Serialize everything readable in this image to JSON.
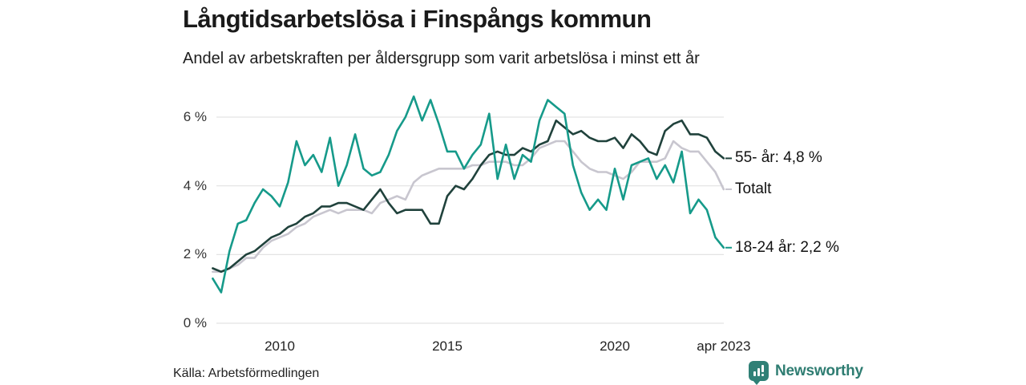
{
  "header": {
    "title": "Långtidsarbetslösa i Finspångs kommun",
    "subtitle": "Andel av arbetskraften per åldersgrupp som varit arbetslösa i minst ett år"
  },
  "footer": {
    "source": "Källa: Arbetsförmedlingen",
    "brand": "Newsworthy",
    "brand_icon": "bar-chart-badge-icon"
  },
  "colors": {
    "teal": "#169a8a",
    "dark_green": "#20423c",
    "light_gray": "#c8c6cf",
    "grid": "#e3e3e3",
    "brand": "#2f7d72",
    "text": "#1a1a1a"
  },
  "chart_data": {
    "type": "line",
    "title": "Långtidsarbetslösa i Finspångs kommun",
    "subtitle": "Andel av arbetskraften per åldersgrupp som varit arbetslösa i minst ett år",
    "unit": "%",
    "grid": "horizontal",
    "legend_position": "right-end-labels",
    "xlim": [
      2008,
      2023.4
    ],
    "ylim": [
      0,
      6.8
    ],
    "x_ticks": [
      {
        "year": 2010,
        "label": "2010"
      },
      {
        "year": 2015,
        "label": "2015"
      },
      {
        "year": 2020,
        "label": "2020"
      },
      {
        "year": 2023.25,
        "label": "apr 2023"
      }
    ],
    "y_ticks": [
      {
        "value": 0,
        "label": "0 %"
      },
      {
        "value": 2,
        "label": "2 %"
      },
      {
        "value": 4,
        "label": "4 %"
      },
      {
        "value": 6,
        "label": "6 %"
      }
    ],
    "x": [
      2008,
      2008.25,
      2008.5,
      2008.75,
      2009,
      2009.25,
      2009.5,
      2009.75,
      2010,
      2010.25,
      2010.5,
      2010.75,
      2011,
      2011.25,
      2011.5,
      2011.75,
      2012,
      2012.25,
      2012.5,
      2012.75,
      2013,
      2013.25,
      2013.5,
      2013.75,
      2014,
      2014.25,
      2014.5,
      2014.75,
      2015,
      2015.25,
      2015.5,
      2015.75,
      2016,
      2016.25,
      2016.5,
      2016.75,
      2017,
      2017.25,
      2017.5,
      2017.75,
      2018,
      2018.25,
      2018.5,
      2018.75,
      2019,
      2019.25,
      2019.5,
      2019.75,
      2020,
      2020.25,
      2020.5,
      2020.75,
      2021,
      2021.25,
      2021.5,
      2021.75,
      2022,
      2022.25,
      2022.5,
      2022.75,
      2023,
      2023.25
    ],
    "series": [
      {
        "name": "Totalt",
        "end_label": "Totalt",
        "end_value": 3.9,
        "color": "#c8c6cf",
        "values": [
          1.5,
          1.5,
          1.6,
          1.7,
          1.9,
          1.9,
          2.2,
          2.4,
          2.5,
          2.6,
          2.8,
          2.9,
          3.1,
          3.2,
          3.3,
          3.2,
          3.3,
          3.3,
          3.3,
          3.2,
          3.5,
          3.6,
          3.7,
          3.6,
          4.1,
          4.3,
          4.4,
          4.5,
          4.5,
          4.5,
          4.5,
          4.6,
          4.6,
          4.7,
          4.7,
          4.7,
          4.6,
          4.6,
          4.8,
          5.1,
          5.2,
          5.3,
          5.3,
          5.0,
          4.7,
          4.5,
          4.4,
          4.4,
          4.3,
          4.2,
          4.4,
          4.7,
          4.7,
          4.7,
          4.8,
          5.3,
          5.1,
          5.0,
          5.0,
          4.7,
          4.4,
          3.9
        ]
      },
      {
        "name": "55- år",
        "end_label": "55- år: 4,8 %",
        "end_value": 4.8,
        "color": "#20423c",
        "values": [
          1.6,
          1.5,
          1.6,
          1.8,
          2.0,
          2.1,
          2.3,
          2.5,
          2.6,
          2.8,
          2.9,
          3.1,
          3.2,
          3.4,
          3.4,
          3.5,
          3.5,
          3.4,
          3.3,
          3.6,
          3.9,
          3.5,
          3.2,
          3.3,
          3.3,
          3.3,
          2.9,
          2.9,
          3.7,
          4.0,
          3.9,
          4.2,
          4.6,
          4.9,
          5.0,
          4.9,
          4.9,
          5.1,
          5.0,
          5.2,
          5.3,
          5.9,
          5.7,
          5.5,
          5.6,
          5.4,
          5.3,
          5.3,
          5.4,
          5.1,
          5.5,
          5.3,
          5.0,
          4.9,
          5.6,
          5.8,
          5.9,
          5.5,
          5.5,
          5.4,
          5.0,
          4.8
        ]
      },
      {
        "name": "18-24 år",
        "end_label": "18-24 år: 2,2 %",
        "end_value": 2.2,
        "color": "#169a8a",
        "values": [
          1.3,
          0.9,
          2.1,
          2.9,
          3.0,
          3.5,
          3.9,
          3.7,
          3.4,
          4.1,
          5.3,
          4.6,
          4.9,
          4.4,
          5.4,
          4.0,
          4.6,
          5.5,
          4.5,
          4.3,
          4.4,
          4.9,
          5.6,
          6.0,
          6.6,
          5.9,
          6.5,
          5.8,
          5.0,
          5.0,
          4.5,
          4.9,
          5.2,
          6.1,
          4.2,
          5.2,
          4.2,
          4.9,
          4.7,
          5.9,
          6.5,
          6.3,
          6.1,
          4.6,
          3.8,
          3.3,
          3.6,
          3.3,
          4.5,
          3.6,
          4.6,
          4.7,
          4.8,
          4.2,
          4.6,
          4.1,
          5.0,
          3.2,
          3.6,
          3.3,
          2.5,
          2.2
        ]
      }
    ]
  }
}
